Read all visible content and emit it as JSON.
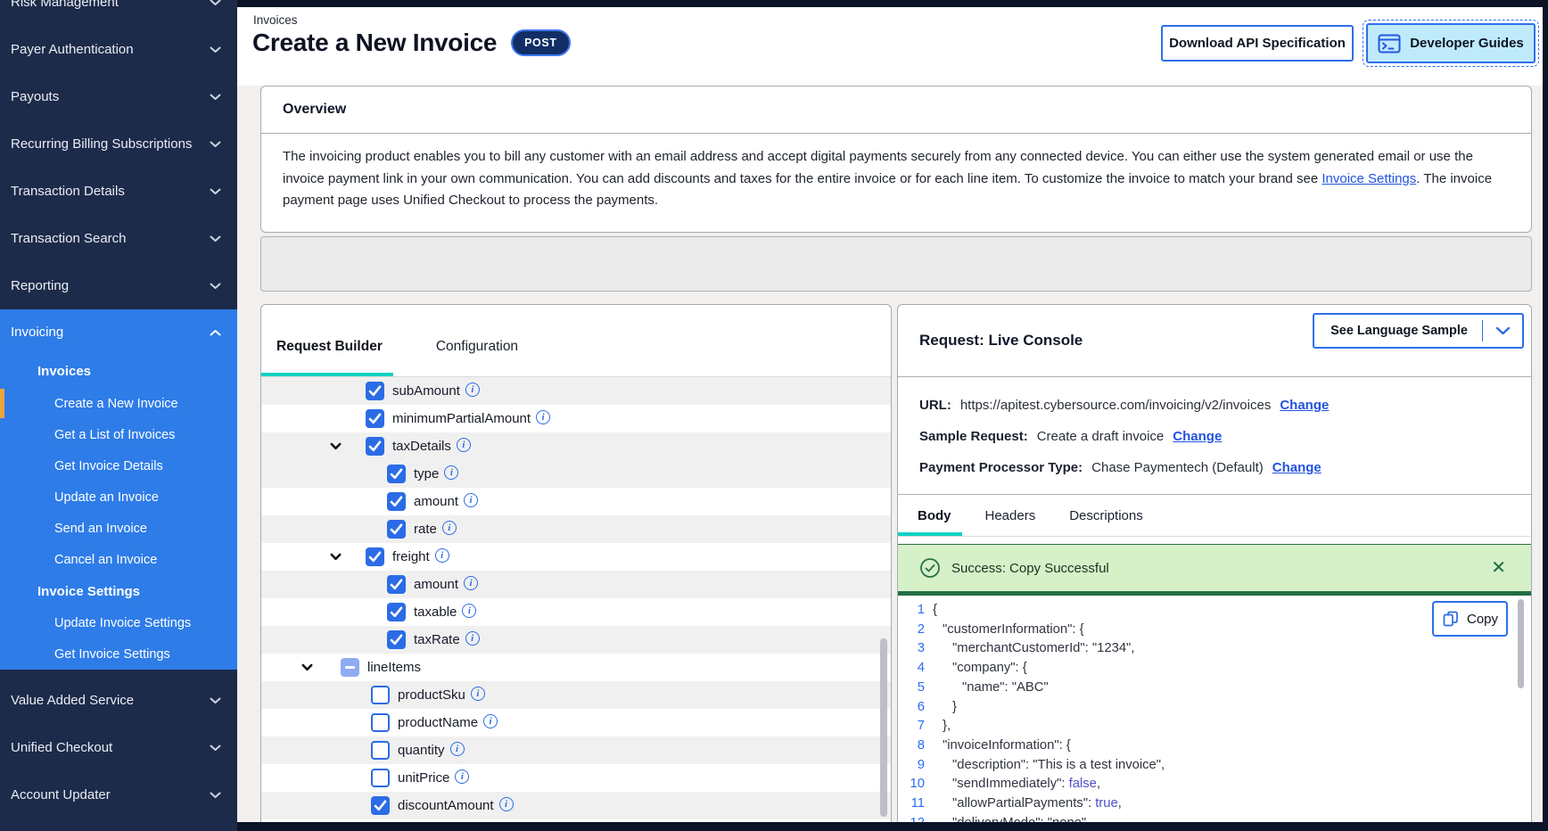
{
  "colors": {
    "sidebar_bg": "#1d2b4a",
    "sidebar_active_bg": "#2e7ce8",
    "selected_indicator": "#f0a43c",
    "accent_blue": "#2e6fed",
    "checkbox_blue": "#2b6ce6",
    "teal_tab": "#0cd2c2",
    "link_blue": "#2453e0",
    "post_pill_bg": "#122e66",
    "dev_guides_bg": "#bfeafc",
    "success_bg": "#d6f0c8",
    "success_border": "#226e44",
    "bool_token": "#4f4fc9",
    "line_number": "#2b6cf0"
  },
  "sidebar": {
    "top_items": [
      {
        "label": "Risk Management"
      },
      {
        "label": "Payer Authentication"
      },
      {
        "label": "Payouts"
      },
      {
        "label": "Recurring Billing Subscriptions"
      },
      {
        "label": "Transaction Details"
      },
      {
        "label": "Transaction Search"
      },
      {
        "label": "Reporting"
      }
    ],
    "invoicing": {
      "label": "Invoicing",
      "groups": [
        {
          "header": "Invoices",
          "items": [
            "Create a New Invoice",
            "Get a List of Invoices",
            "Get Invoice Details",
            "Update an Invoice",
            "Send an Invoice",
            "Cancel an Invoice"
          ]
        },
        {
          "header": "Invoice Settings",
          "items": [
            "Update Invoice Settings",
            "Get Invoice Settings"
          ]
        }
      ],
      "selected": "Create a New Invoice"
    },
    "bottom_items": [
      {
        "label": "Value Added Service"
      },
      {
        "label": "Unified Checkout"
      },
      {
        "label": "Account Updater"
      }
    ]
  },
  "header": {
    "breadcrumb": "Invoices",
    "title": "Create a New Invoice",
    "method": "POST",
    "download_button": "Download API Specification",
    "dev_guides_button": "Developer Guides"
  },
  "overview": {
    "title": "Overview",
    "body_before": "The invoicing product enables you to bill any customer with an email address and accept digital payments securely from any connected device. You can either use the system generated email or use the invoice payment link in your own communication. You can add discounts and taxes for the entire invoice or for each line item. To customize the invoice to match your brand see ",
    "link_text": "Invoice Settings",
    "body_after": ". The invoice payment page uses Unified Checkout to process the payments."
  },
  "request_builder": {
    "tabs": [
      "Request Builder",
      "Configuration"
    ],
    "active_tab": "Request Builder",
    "rows": [
      {
        "label": "subAmount",
        "state": "checked",
        "level": "2",
        "caret": false,
        "info": true,
        "shaded": true
      },
      {
        "label": "minimumPartialAmount",
        "state": "checked",
        "level": "2",
        "caret": false,
        "info": true,
        "shaded": false
      },
      {
        "label": "taxDetails",
        "state": "checked",
        "level": "2",
        "caret": true,
        "info": true,
        "shaded": true
      },
      {
        "label": "type",
        "state": "checked",
        "level": "3",
        "caret": false,
        "info": true,
        "shaded": true
      },
      {
        "label": "amount",
        "state": "checked",
        "level": "3",
        "caret": false,
        "info": true,
        "shaded": false
      },
      {
        "label": "rate",
        "state": "checked",
        "level": "3",
        "caret": false,
        "info": true,
        "shaded": true
      },
      {
        "label": "freight",
        "state": "checked",
        "level": "2",
        "caret": true,
        "info": true,
        "shaded": false
      },
      {
        "label": "amount",
        "state": "checked",
        "level": "3",
        "caret": false,
        "info": true,
        "shaded": true
      },
      {
        "label": "taxable",
        "state": "checked",
        "level": "3",
        "caret": false,
        "info": true,
        "shaded": false
      },
      {
        "label": "taxRate",
        "state": "checked",
        "level": "3",
        "caret": false,
        "info": true,
        "shaded": true
      },
      {
        "label": "lineItems",
        "state": "indeterminate",
        "level": "1",
        "caret": true,
        "info": false,
        "shaded": false
      },
      {
        "label": "productSku",
        "state": "unchecked",
        "level": "2b",
        "caret": false,
        "info": true,
        "shaded": true
      },
      {
        "label": "productName",
        "state": "unchecked",
        "level": "2b",
        "caret": false,
        "info": true,
        "shaded": false
      },
      {
        "label": "quantity",
        "state": "unchecked",
        "level": "2b",
        "caret": false,
        "info": true,
        "shaded": true
      },
      {
        "label": "unitPrice",
        "state": "unchecked",
        "level": "2b",
        "caret": false,
        "info": true,
        "shaded": false
      },
      {
        "label": "discountAmount",
        "state": "checked",
        "level": "2b",
        "caret": false,
        "info": true,
        "shaded": true
      }
    ]
  },
  "console": {
    "title": "Request: Live Console",
    "language_button": "See Language Sample",
    "info_rows": [
      {
        "label": "URL:",
        "value": "https://apitest.cybersource.com/invoicing/v2/invoices",
        "link": "Change"
      },
      {
        "label": "Sample Request:",
        "value": "Create a draft invoice",
        "link": "Change"
      },
      {
        "label": "Payment Processor Type:",
        "value": "Chase Paymentech (Default)",
        "link": "Change"
      }
    ],
    "tabs": [
      "Body",
      "Headers",
      "Descriptions"
    ],
    "active_tab": "Body",
    "banner": {
      "text": "Success: Copy Successful",
      "close": "✕"
    },
    "copy_label": "Copy",
    "code_lines": [
      {
        "n": 1,
        "indent": 0,
        "tokens": [
          {
            "t": "{",
            "c": "p"
          }
        ]
      },
      {
        "n": 2,
        "indent": 1,
        "tokens": [
          {
            "t": "\"customerInformation\": {",
            "c": "p"
          }
        ]
      },
      {
        "n": 3,
        "indent": 2,
        "tokens": [
          {
            "t": "\"merchantCustomerId\": \"1234\",",
            "c": "p"
          }
        ]
      },
      {
        "n": 4,
        "indent": 2,
        "tokens": [
          {
            "t": "\"company\": {",
            "c": "p"
          }
        ]
      },
      {
        "n": 5,
        "indent": 3,
        "tokens": [
          {
            "t": "\"name\": \"ABC\"",
            "c": "p"
          }
        ]
      },
      {
        "n": 6,
        "indent": 2,
        "tokens": [
          {
            "t": "}",
            "c": "p"
          }
        ]
      },
      {
        "n": 7,
        "indent": 1,
        "tokens": [
          {
            "t": "},",
            "c": "p"
          }
        ]
      },
      {
        "n": 8,
        "indent": 1,
        "tokens": [
          {
            "t": "\"invoiceInformation\": {",
            "c": "p"
          }
        ]
      },
      {
        "n": 9,
        "indent": 2,
        "tokens": [
          {
            "t": "\"description\": \"This is a test invoice\",",
            "c": "p"
          }
        ]
      },
      {
        "n": 10,
        "indent": 2,
        "tokens": [
          {
            "t": "\"sendImmediately\": ",
            "c": "p"
          },
          {
            "t": "false",
            "c": "b"
          },
          {
            "t": ",",
            "c": "p"
          }
        ]
      },
      {
        "n": 11,
        "indent": 2,
        "tokens": [
          {
            "t": "\"allowPartialPayments\": ",
            "c": "p"
          },
          {
            "t": "true",
            "c": "b"
          },
          {
            "t": ",",
            "c": "p"
          }
        ]
      },
      {
        "n": 12,
        "indent": 2,
        "tokens": [
          {
            "t": "\"deliveryMode\": \"none\"",
            "c": "p"
          }
        ]
      }
    ]
  }
}
